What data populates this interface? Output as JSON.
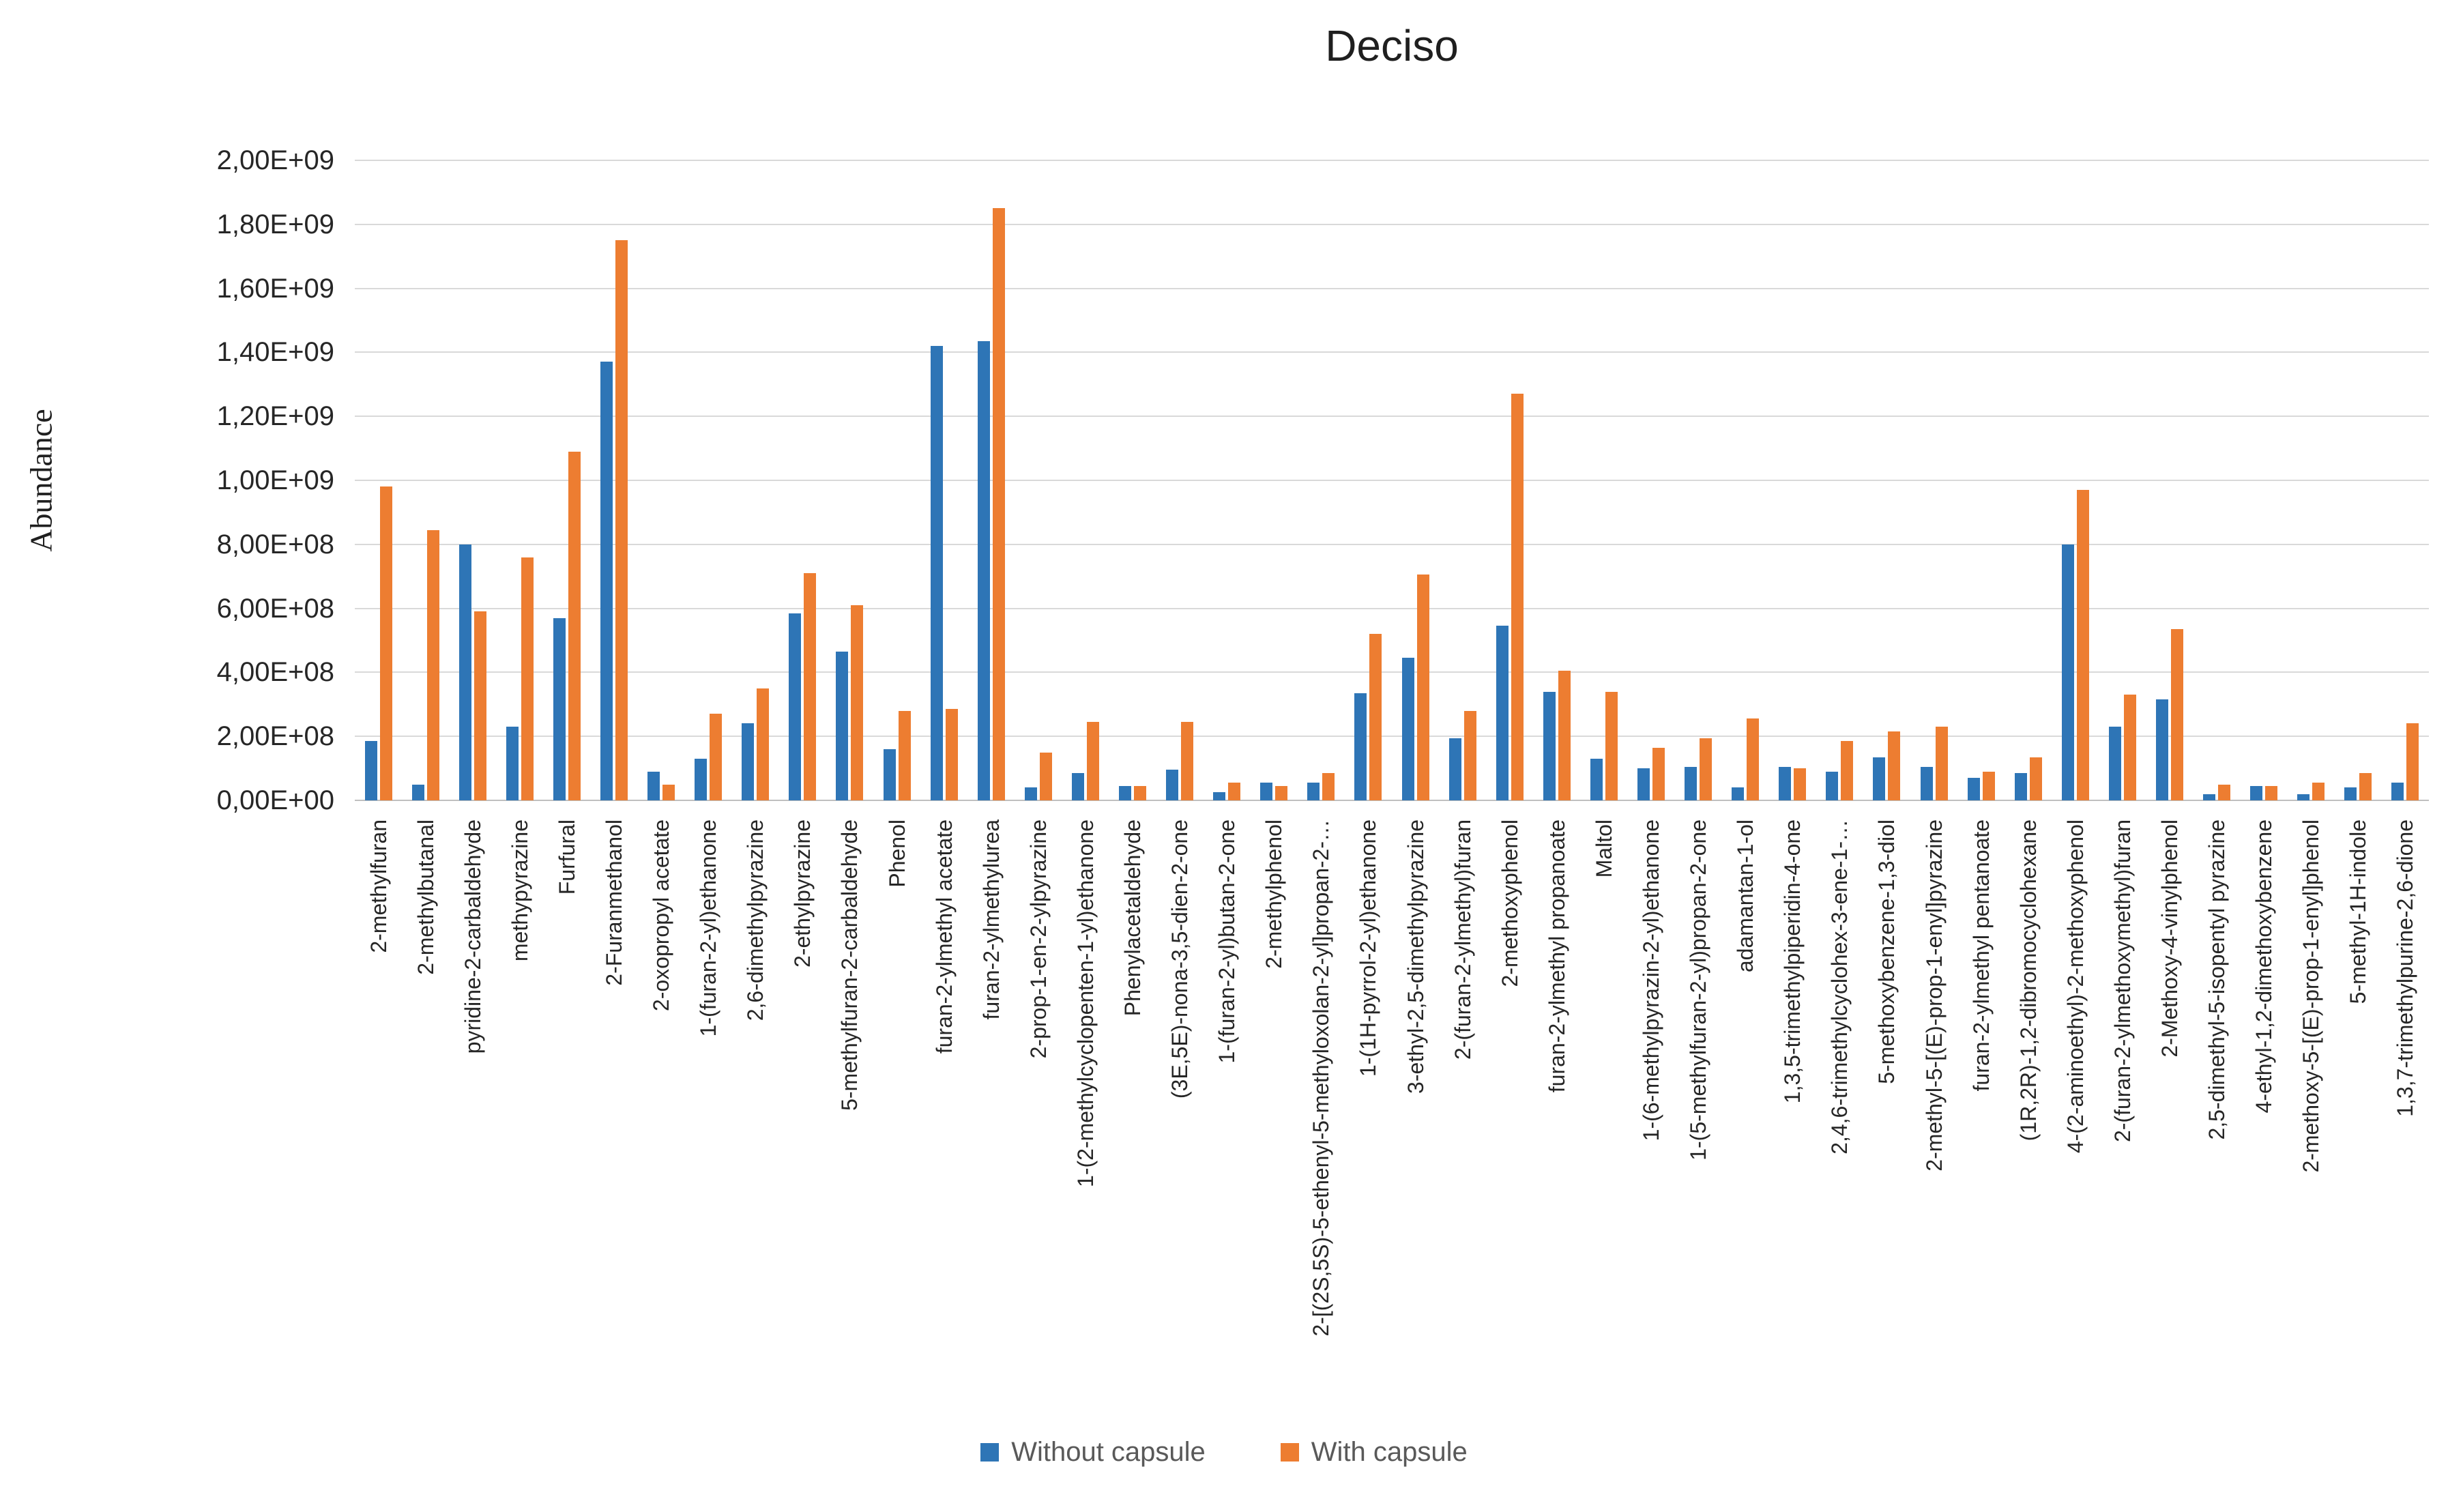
{
  "title": "Deciso",
  "y_axis": {
    "title": "Abundance",
    "tick_labels": [
      "0,00E+00",
      "2,00E+08",
      "4,00E+08",
      "6,00E+08",
      "8,00E+08",
      "1,00E+09",
      "1,20E+09",
      "1,40E+09",
      "1,60E+09",
      "1,80E+09",
      "2,00E+09"
    ]
  },
  "legend": [
    {
      "label": "Without capsule",
      "color": "#2E75B6"
    },
    {
      "label": "With capsule",
      "color": "#ED7D31"
    }
  ],
  "colors": {
    "series_blue": "#2E75B6",
    "series_orange": "#ED7D31",
    "gridline": "#D9D9D9",
    "axis_line": "#BFBFBF",
    "text": "#262626",
    "legend_text": "#595959"
  },
  "chart_data": {
    "type": "bar",
    "title": "Deciso",
    "xlabel": "",
    "ylabel": "Abundance",
    "ylim": [
      0,
      2000000000
    ],
    "ytick_step": 200000000,
    "grid": true,
    "legend_position": "bottom",
    "categories": [
      "2-methylfuran",
      "2-methylbutanal",
      "pyridine-2-carbaldehyde",
      "methypyrazine",
      "Furfural",
      "2-Furanmethanol",
      "2-oxopropyl acetate",
      "1-(furan-2-yl)ethanone",
      "2,6-dimethylpyrazine",
      "2-ethylpyrazine",
      "5-methylfuran-2-carbaldehyde",
      "Phenol",
      "furan-2-ylmethyl acetate",
      "furan-2-ylmethylurea",
      "2-prop-1-en-2-ylpyrazine",
      "1-(2-methylcyclopenten-1-yl)ethanone",
      "Phenylacetaldehyde",
      "(3E,5E)-nona-3,5-dien-2-one",
      "1-(furan-2-yl)butan-2-one",
      "2-methylphenol",
      "2-[(2S,5S)-5-ethenyl-5-methyloxolan-2-yl]propan-2-…",
      "1-(1H-pyrrol-2-yl)ethanone",
      "3-ethyl-2,5-dimethylpyrazine",
      "2-(furan-2-ylmethyl)furan",
      "2-methoxyphenol",
      "furan-2-ylmethyl propanoate",
      "Maltol",
      "1-(6-methylpyrazin-2-yl)ethanone",
      "1-(5-methylfuran-2-yl)propan-2-one",
      "adamantan-1-ol",
      "1,3,5-trimethylpiperidin-4-one",
      "2,4,6-trimethylcyclohex-3-ene-1-…",
      "5-methoxybenzene-1,3-diol",
      "2-methyl-5-[(E)-prop-1-enyl]pyrazine",
      "furan-2-ylmethyl pentanoate",
      "(1R,2R)-1,2-dibromocyclohexane",
      "4-(2-aminoethyl)-2-methoxyphenol",
      "2-(furan-2-ylmethoxymethyl)furan",
      "2-Methoxy-4-vinylphenol",
      "2,5-dimethyl-5-isopentyl pyrazine",
      "4-ethyl-1,2-dimethoxybenzene",
      "2-methoxy-5-[(E)-prop-1-enyl]phenol",
      "5-methyl-1H-indole",
      "1,3,7-trimethylpurine-2,6-dione"
    ],
    "series": [
      {
        "name": "Without capsule",
        "color": "#2E75B6",
        "values": [
          185000000,
          50000000,
          800000000,
          230000000,
          570000000,
          1370000000,
          90000000,
          130000000,
          240000000,
          585000000,
          465000000,
          160000000,
          1420000000,
          1435000000,
          40000000,
          85000000,
          45000000,
          95000000,
          25000000,
          55000000,
          55000000,
          335000000,
          445000000,
          195000000,
          545000000,
          340000000,
          130000000,
          100000000,
          105000000,
          40000000,
          105000000,
          90000000,
          135000000,
          105000000,
          70000000,
          85000000,
          800000000,
          230000000,
          315000000,
          20000000,
          45000000,
          20000000,
          40000000,
          55000000
        ]
      },
      {
        "name": "With capsule",
        "color": "#ED7D31",
        "values": [
          980000000,
          845000000,
          590000000,
          760000000,
          1090000000,
          1750000000,
          50000000,
          270000000,
          350000000,
          710000000,
          610000000,
          280000000,
          285000000,
          1850000000,
          150000000,
          245000000,
          45000000,
          245000000,
          55000000,
          45000000,
          85000000,
          520000000,
          705000000,
          280000000,
          1270000000,
          405000000,
          340000000,
          165000000,
          195000000,
          255000000,
          100000000,
          185000000,
          215000000,
          230000000,
          90000000,
          135000000,
          970000000,
          330000000,
          535000000,
          50000000,
          45000000,
          55000000,
          85000000,
          240000000
        ]
      }
    ]
  }
}
